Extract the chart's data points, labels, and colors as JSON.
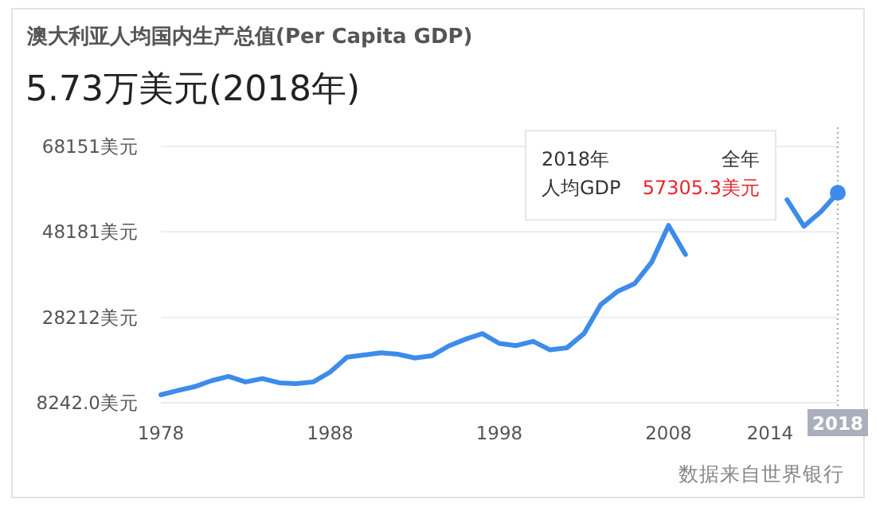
{
  "chart_data": {
    "type": "line",
    "title": "澳大利亚人均国内生产总值(Per Capita GDP)",
    "subtitle": "5.73万美元(2018年)",
    "x": [
      1978,
      1979,
      1980,
      1981,
      1982,
      1983,
      1984,
      1985,
      1986,
      1987,
      1988,
      1989,
      1990,
      1991,
      1992,
      1993,
      1994,
      1995,
      1996,
      1997,
      1998,
      1999,
      2000,
      2001,
      2002,
      2003,
      2004,
      2005,
      2006,
      2007,
      2008,
      2009,
      2010,
      2011,
      2012,
      2013,
      2014,
      2015,
      2016,
      2017,
      2018
    ],
    "series": [
      {
        "color": "#3d8bea",
        "values": [
          10100,
          11100,
          12000,
          13400,
          14400,
          13100,
          13900,
          12900,
          12700,
          13100,
          15400,
          18900,
          19400,
          19900,
          19600,
          18700,
          19200,
          21500,
          23100,
          24400,
          22100,
          21600,
          22600,
          20600,
          21100,
          24400,
          31200,
          34300,
          36100,
          41100,
          49700,
          42900,
          null,
          null,
          null,
          null,
          null,
          55700,
          49500,
          52900,
          57305.3
        ]
      }
    ],
    "xlim": [
      1978,
      2018
    ],
    "xticks": [
      1978,
      1988,
      1998,
      2008,
      2014
    ],
    "ylim": [
      8242,
      68151
    ],
    "yticks": [
      {
        "value": 8242,
        "label": "8242.0美元"
      },
      {
        "value": 28212,
        "label": "28212美元"
      },
      {
        "value": 48181,
        "label": "48181美元"
      },
      {
        "value": 68151,
        "label": "68151美元"
      }
    ],
    "grid": "y",
    "ref_lines": [
      {
        "axis": "x",
        "value": 2018,
        "label": "2018",
        "line_style": "dotted",
        "color": "#aab0bb"
      }
    ],
    "annotations": [
      "2018年",
      "全年",
      "人均GDP",
      "57305.3美元",
      "数据来自世界银行"
    ]
  }
}
